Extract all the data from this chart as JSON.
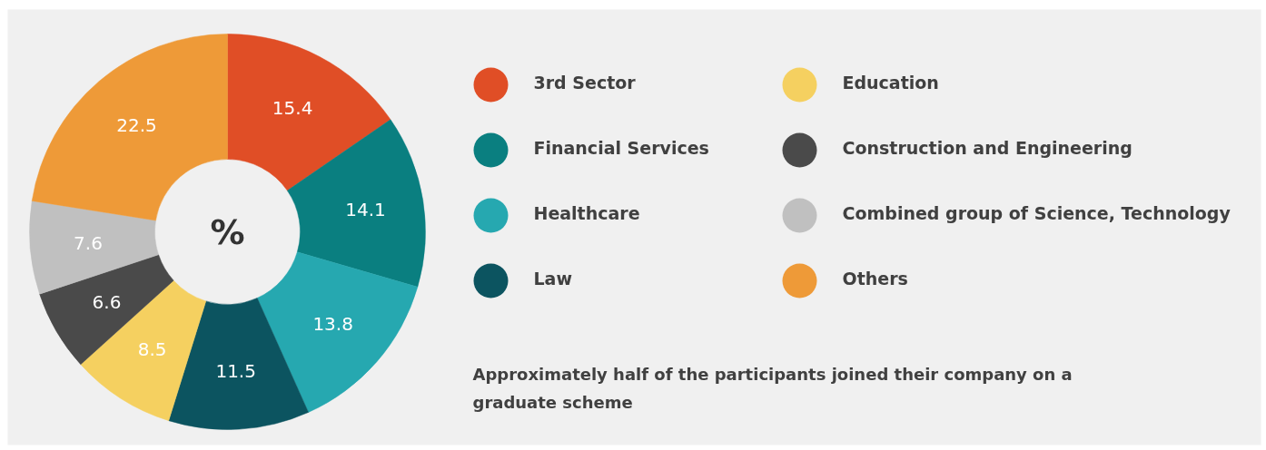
{
  "chart_data": {
    "type": "donut",
    "categories": [
      "3rd Sector",
      "Financial Services",
      "Healthcare",
      "Law",
      "Education",
      "Construction and Engineering",
      "Combined group of Science, Technology",
      "Others"
    ],
    "values": [
      15.4,
      14.1,
      13.8,
      11.5,
      8.5,
      6.6,
      7.6,
      22.5
    ],
    "colors": [
      "#e04e26",
      "#0a7f80",
      "#26a8b0",
      "#0c5460",
      "#f5d060",
      "#4a4a4a",
      "#c0c0c0",
      "#ee9a38"
    ],
    "data_labels": true,
    "legend": "right",
    "annotations": [
      "%",
      "Approximately half of the participants joined their company on a graduate scheme"
    ]
  }
}
